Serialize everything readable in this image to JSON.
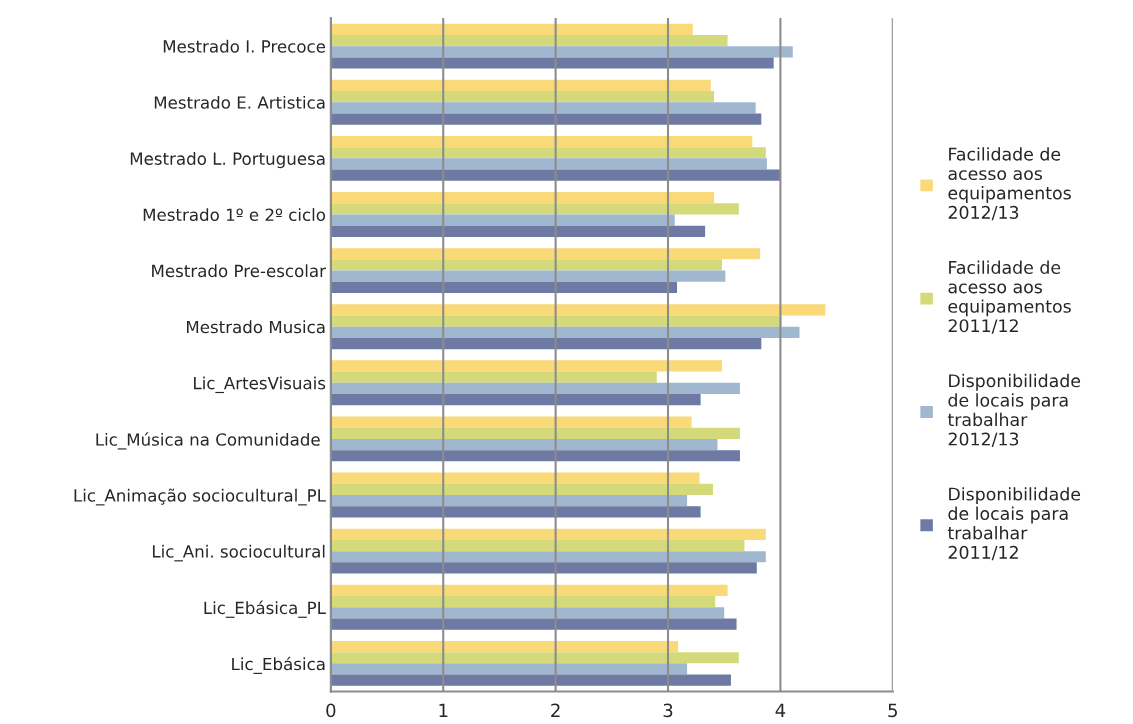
{
  "chart_data": {
    "type": "bar",
    "orientation": "horizontal",
    "categories": [
      "Mestrado I. Precoce",
      "Mestrado E. Artistica",
      "Mestrado L. Portuguesa",
      "Mestrado 1º e 2º ciclo",
      "Mestrado Pre-escolar",
      "Mestrado Musica",
      "Lic_ArtesVisuais",
      "Lic_Música na Comunidade ",
      "Lic_Animação sociocultural_PL",
      "Lic_Ani. sociocultural",
      "Lic_Ebásica_PL",
      "Lic_Ebásica"
    ],
    "series": [
      {
        "name": "Facilidade de\nacesso aos\nequipamentos\n2012/13",
        "color": "#f9d978",
        "values": [
          3.22,
          3.38,
          3.75,
          3.41,
          3.82,
          4.4,
          3.48,
          3.21,
          3.28,
          3.87,
          3.53,
          3.09
        ]
      },
      {
        "name": "Facilidade de\nacesso aos\nequipamentos\n2011/12",
        "color": "#d4da7a",
        "values": [
          3.53,
          3.41,
          3.87,
          3.63,
          3.48,
          4.01,
          2.9,
          3.64,
          3.4,
          3.68,
          3.42,
          3.63
        ]
      },
      {
        "name": "Disponibilidade\nde locais para\ntrabalhar\n2012/13",
        "color": "#a0b8cf",
        "values": [
          4.11,
          3.78,
          3.88,
          3.06,
          3.51,
          4.17,
          3.64,
          3.44,
          3.17,
          3.87,
          3.5,
          3.17
        ]
      },
      {
        "name": "Disponibilidade\nde locais para\ntrabalhar\n2011/12",
        "color": "#6e7aa3",
        "values": [
          3.94,
          3.83,
          4.0,
          3.33,
          3.08,
          3.83,
          3.29,
          3.64,
          3.29,
          3.79,
          3.61,
          3.56
        ]
      }
    ],
    "xlim": [
      0,
      5
    ],
    "xticks": [
      0,
      1,
      2,
      3,
      4,
      5
    ],
    "grid": "x",
    "legend": "right"
  }
}
